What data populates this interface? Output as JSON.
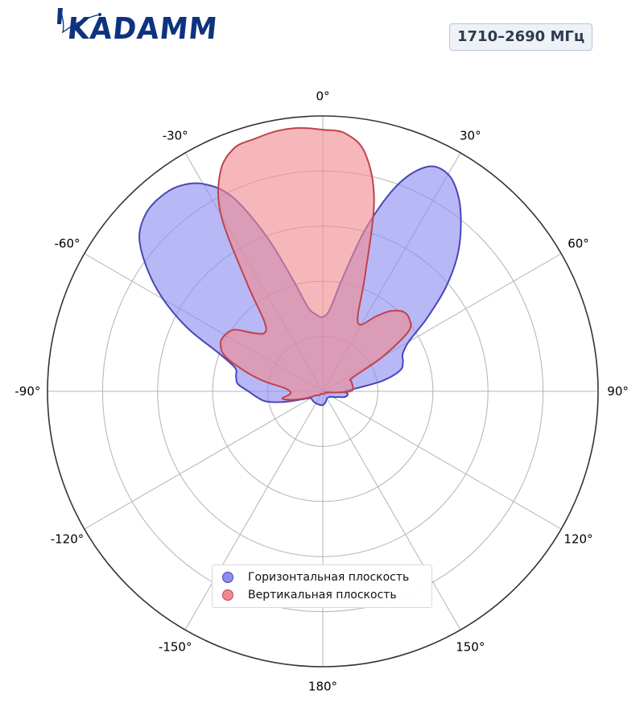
{
  "header": {
    "logo_text": "KADAMM",
    "frequency_badge": "1710–2690 МГц"
  },
  "colors": {
    "horizontal_fill": "#8c8cf0",
    "horizontal_line": "#4a47b8",
    "vertical_fill": "#f08a90",
    "vertical_line": "#c0434d",
    "grid": "#b3b3b3",
    "frame": "#333340",
    "logo": "#0d3380"
  },
  "chart_data": {
    "type": "polar",
    "theta_direction": "clockwise",
    "theta_zero": "top",
    "r_range": [
      0,
      1
    ],
    "r_gridlines": [
      0.2,
      0.4,
      0.6,
      0.8
    ],
    "grid": true,
    "angle_ticks": [
      "0°",
      "30°",
      "60°",
      "90°",
      "120°",
      "150°",
      "180°",
      "-150°",
      "-120°",
      "-90°",
      "-60°",
      "-30°"
    ],
    "legend_position": "bottom-center",
    "legend": [
      "Горизонтальная плоскость",
      "Вертикальная плоскость"
    ],
    "series": [
      {
        "name": "Горизонтальная плоскость",
        "angles": [
          0,
          5,
          10,
          15,
          20,
          25,
          30,
          35,
          40,
          45,
          50,
          55,
          60,
          65,
          70,
          75,
          80,
          85,
          90,
          95,
          100,
          105,
          110,
          115,
          120,
          135,
          150,
          165,
          180,
          195,
          210,
          225,
          240,
          245,
          250,
          255,
          260,
          265,
          270,
          275,
          280,
          285,
          290,
          295,
          300,
          305,
          310,
          315,
          320,
          325,
          330,
          335,
          340,
          345,
          350,
          355
        ],
        "r": [
          0.27,
          0.3,
          0.42,
          0.62,
          0.8,
          0.9,
          0.91,
          0.86,
          0.78,
          0.69,
          0.58,
          0.46,
          0.36,
          0.32,
          0.31,
          0.29,
          0.22,
          0.12,
          0.08,
          0.09,
          0.09,
          0.08,
          0.06,
          0.05,
          0.04,
          0.03,
          0.03,
          0.04,
          0.05,
          0.05,
          0.05,
          0.05,
          0.05,
          0.06,
          0.09,
          0.15,
          0.21,
          0.24,
          0.27,
          0.31,
          0.32,
          0.33,
          0.4,
          0.54,
          0.67,
          0.78,
          0.87,
          0.91,
          0.92,
          0.91,
          0.87,
          0.78,
          0.6,
          0.42,
          0.31,
          0.28
        ]
      },
      {
        "name": "Вертикальная плоскость",
        "angles": [
          0,
          5,
          10,
          15,
          20,
          25,
          30,
          35,
          40,
          45,
          50,
          55,
          60,
          65,
          70,
          75,
          80,
          85,
          90,
          95,
          100,
          105,
          110,
          115,
          120,
          135,
          150,
          165,
          180,
          195,
          210,
          225,
          240,
          245,
          250,
          255,
          260,
          265,
          270,
          275,
          280,
          285,
          290,
          295,
          300,
          305,
          310,
          315,
          320,
          325,
          330,
          335,
          340,
          345,
          350,
          355
        ],
        "r": [
          0.95,
          0.94,
          0.88,
          0.72,
          0.45,
          0.3,
          0.28,
          0.33,
          0.38,
          0.41,
          0.41,
          0.38,
          0.25,
          0.12,
          0.11,
          0.11,
          0.11,
          0.11,
          0.1,
          0.05,
          0.02,
          0.02,
          0.01,
          0.01,
          0.01,
          0.01,
          0.01,
          0.01,
          0.01,
          0.01,
          0.01,
          0.02,
          0.03,
          0.05,
          0.08,
          0.12,
          0.15,
          0.12,
          0.12,
          0.14,
          0.22,
          0.3,
          0.38,
          0.41,
          0.41,
          0.39,
          0.33,
          0.3,
          0.33,
          0.48,
          0.74,
          0.88,
          0.94,
          0.95,
          0.96,
          0.96
        ]
      }
    ]
  }
}
